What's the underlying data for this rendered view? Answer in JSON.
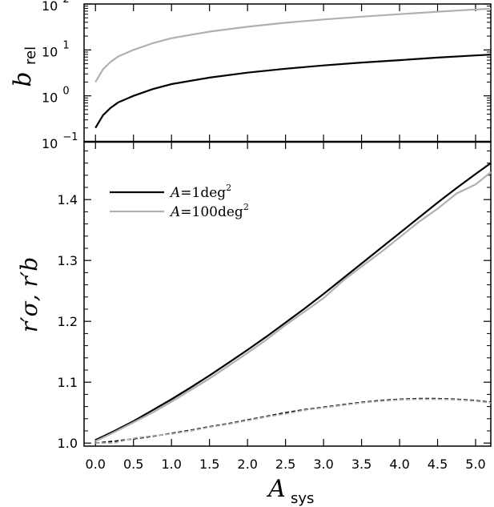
{
  "chart_data": [
    {
      "type": "line",
      "panel": "top",
      "xlabel": "",
      "ylabel_main": "b",
      "ylabel_sub": "rel",
      "yscale": "log",
      "ylim": [
        0.1,
        100
      ],
      "xlim": [
        -0.15,
        5.2
      ],
      "yticks": [
        {
          "base": "10",
          "exp": "−1",
          "value": 0.1
        },
        {
          "base": "10",
          "exp": "0",
          "value": 1
        },
        {
          "base": "10",
          "exp": "1",
          "value": 10
        },
        {
          "base": "10",
          "exp": "2",
          "value": 100
        }
      ],
      "grid": false,
      "series": [
        {
          "color": "#000000",
          "x": [
            0.0,
            0.1,
            0.2,
            0.3,
            0.5,
            0.75,
            1.0,
            1.5,
            2.0,
            2.5,
            3.0,
            3.5,
            4.0,
            4.5,
            5.0,
            5.2
          ],
          "y": [
            0.2,
            0.38,
            0.55,
            0.72,
            1.0,
            1.4,
            1.8,
            2.5,
            3.2,
            3.9,
            4.6,
            5.3,
            6.0,
            6.8,
            7.6,
            7.9
          ]
        },
        {
          "color": "#b0b0b0",
          "x": [
            0.0,
            0.1,
            0.2,
            0.3,
            0.5,
            0.75,
            1.0,
            1.5,
            2.0,
            2.5,
            3.0,
            3.5,
            4.0,
            4.5,
            5.0,
            5.2
          ],
          "y": [
            2.0,
            3.8,
            5.5,
            7.2,
            10,
            14,
            18,
            25,
            32,
            39,
            46,
            53,
            60,
            68,
            76,
            79
          ]
        }
      ]
    },
    {
      "type": "line",
      "panel": "bottom",
      "xlabel_main": "A",
      "xlabel_sub": "sys",
      "ylabel": "r′σ, r′b",
      "ylim": [
        0.995,
        1.495
      ],
      "xlim": [
        -0.15,
        5.2
      ],
      "xticks": [
        "0.0",
        "0.5",
        "1.0",
        "1.5",
        "2.0",
        "2.5",
        "3.0",
        "3.5",
        "4.0",
        "4.5",
        "5.0"
      ],
      "yticks": [
        "1.0",
        "1.1",
        "1.2",
        "1.3",
        "1.4"
      ],
      "legend": {
        "placement": "upper-left",
        "entries": [
          {
            "prefix": "A",
            "text": "=1deg",
            "exp": "2",
            "color": "#000000"
          },
          {
            "prefix": "A",
            "text": "=100deg",
            "exp": "2",
            "color": "#b0b0b0"
          }
        ]
      },
      "series": [
        {
          "name": "A=1deg²",
          "color": "#000000",
          "style": "solid",
          "x": [
            0.0,
            0.25,
            0.5,
            0.75,
            1.0,
            1.25,
            1.5,
            1.75,
            2.0,
            2.25,
            2.5,
            2.75,
            3.0,
            3.25,
            3.5,
            3.75,
            4.0,
            4.25,
            4.5,
            4.75,
            5.0,
            5.2
          ],
          "y": [
            1.005,
            1.02,
            1.036,
            1.054,
            1.072,
            1.091,
            1.111,
            1.132,
            1.153,
            1.175,
            1.198,
            1.221,
            1.245,
            1.27,
            1.295,
            1.32,
            1.345,
            1.37,
            1.395,
            1.419,
            1.442,
            1.46
          ]
        },
        {
          "name": "A=100deg²",
          "color": "#b0b0b0",
          "style": "solid",
          "x": [
            0.0,
            0.25,
            0.5,
            0.75,
            1.0,
            1.25,
            1.5,
            1.75,
            2.0,
            2.25,
            2.5,
            2.75,
            3.0,
            3.25,
            3.5,
            3.75,
            4.0,
            4.25,
            4.5,
            4.75,
            5.0,
            5.2
          ],
          "y": [
            1.003,
            1.018,
            1.034,
            1.05,
            1.068,
            1.087,
            1.106,
            1.127,
            1.148,
            1.17,
            1.194,
            1.216,
            1.238,
            1.266,
            1.29,
            1.313,
            1.338,
            1.363,
            1.385,
            1.41,
            1.425,
            1.445
          ]
        },
        {
          "color": "#000000",
          "style": "dashed",
          "x": [
            0.0,
            0.25,
            0.5,
            0.75,
            1.0,
            1.25,
            1.5,
            1.75,
            2.0,
            2.25,
            2.5,
            2.75,
            3.0,
            3.25,
            3.5,
            3.75,
            4.0,
            4.25,
            4.5,
            4.75,
            5.0,
            5.2
          ],
          "y": [
            1.0,
            1.003,
            1.007,
            1.011,
            1.016,
            1.021,
            1.027,
            1.032,
            1.038,
            1.044,
            1.05,
            1.055,
            1.059,
            1.063,
            1.067,
            1.07,
            1.072,
            1.073,
            1.073,
            1.072,
            1.07,
            1.067
          ]
        },
        {
          "color": "#b0b0b0",
          "style": "dashed",
          "x": [
            0.0,
            0.25,
            0.5,
            0.75,
            1.0,
            1.25,
            1.5,
            1.75,
            2.0,
            2.25,
            2.5,
            2.75,
            3.0,
            3.25,
            3.5,
            3.75,
            4.0,
            4.25,
            4.5,
            4.75,
            5.0,
            5.2
          ],
          "y": [
            1.0,
            1.0,
            1.008,
            1.012,
            1.015,
            1.02,
            1.026,
            1.031,
            1.037,
            1.043,
            1.048,
            1.054,
            1.058,
            1.062,
            1.066,
            1.069,
            1.071,
            1.072,
            1.072,
            1.071,
            1.069,
            1.066
          ]
        }
      ]
    }
  ]
}
